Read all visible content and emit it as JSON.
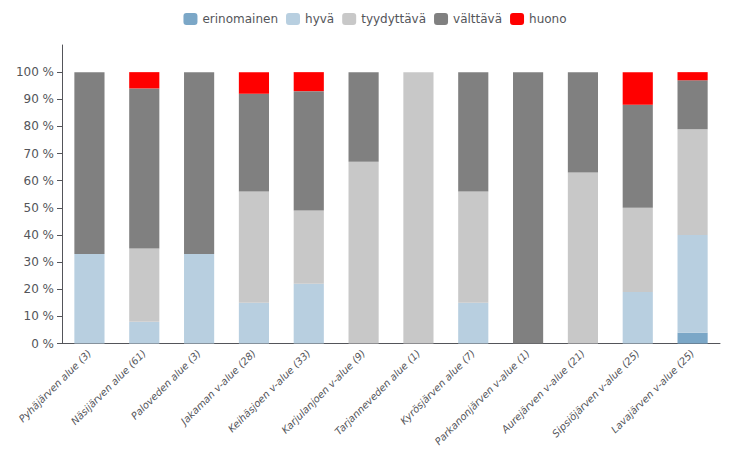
{
  "chart_data": {
    "type": "bar",
    "stacked": true,
    "categories": [
      "Pyhäjärven alue (3)",
      "Näsijärven alue (61)",
      "Paloveden alue (3)",
      "Jakaman v-alue (28)",
      "Keihäsjoen v-alue (33)",
      "Karjulanjoen v-alue (9)",
      "Tarjanneveden alue (1)",
      "Kyrösjärven alue (7)",
      "Parkanonjärven v-alue (1)",
      "Aurejärven v-alue (21)",
      "Sipsiöjärven v-alue (25)",
      "Lavajärven v-alue (25)"
    ],
    "series": [
      {
        "name": "erinomainen",
        "color": "#7BA7C7",
        "values": [
          0,
          0,
          0,
          0,
          0,
          0,
          0,
          0,
          0,
          0,
          0,
          4
        ]
      },
      {
        "name": "hyvä",
        "color": "#B8CFE0",
        "values": [
          33,
          8,
          33,
          15,
          22,
          0,
          0,
          15,
          0,
          0,
          19,
          36
        ]
      },
      {
        "name": "tyydyttävä",
        "color": "#C8C8C8",
        "values": [
          0,
          27,
          0,
          41,
          27,
          67,
          100,
          41,
          0,
          63,
          31,
          39
        ]
      },
      {
        "name": "välttävä",
        "color": "#808080",
        "values": [
          67,
          59,
          67,
          36,
          44,
          33,
          0,
          44,
          100,
          37,
          38,
          18
        ]
      },
      {
        "name": "huono",
        "color": "#FF0000",
        "values": [
          0,
          6,
          0,
          8,
          7,
          0,
          0,
          0,
          0,
          0,
          12,
          3
        ]
      }
    ],
    "ylim": [
      0,
      110
    ],
    "yticks": [
      {
        "value": 0,
        "label": "0 %"
      },
      {
        "value": 10,
        "label": "10 %"
      },
      {
        "value": 20,
        "label": "20 %"
      },
      {
        "value": 30,
        "label": "30 %"
      },
      {
        "value": 40,
        "label": "40 %"
      },
      {
        "value": 50,
        "label": "50 %"
      },
      {
        "value": 60,
        "label": "60 %"
      },
      {
        "value": 70,
        "label": "70 %"
      },
      {
        "value": 80,
        "label": "80 %"
      },
      {
        "value": 90,
        "label": "90 %"
      },
      {
        "value": 100,
        "label": "100 %"
      }
    ],
    "grid": false,
    "legend": "top"
  }
}
